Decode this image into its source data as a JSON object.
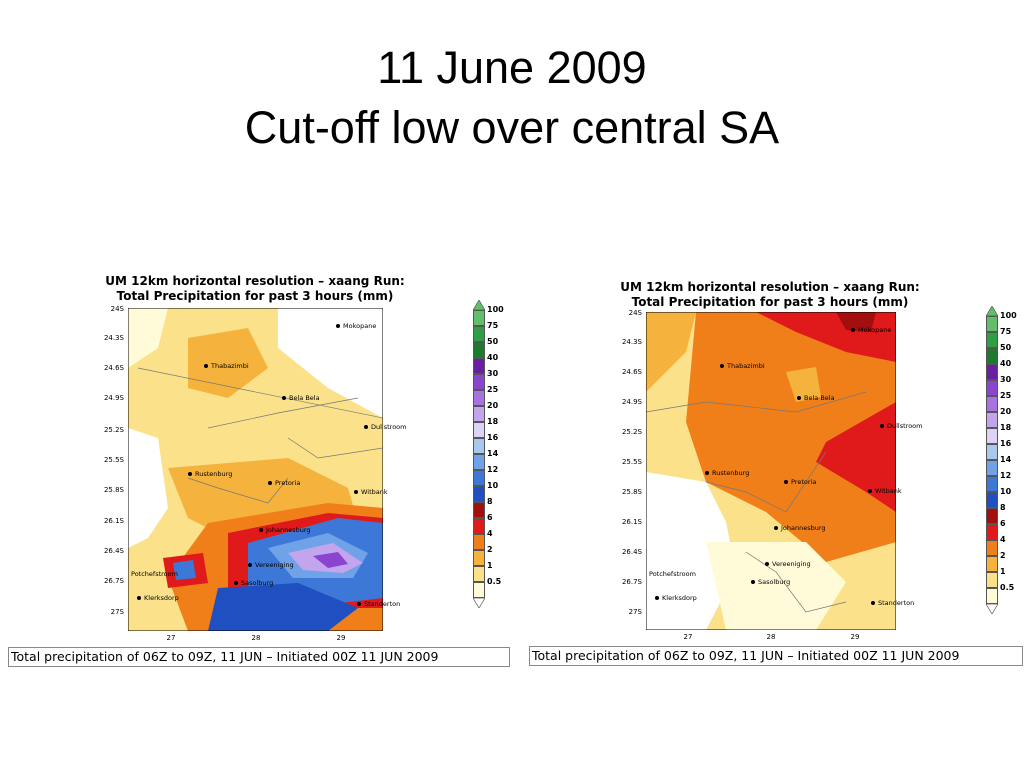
{
  "slide": {
    "title_line1": "11 June 2009",
    "title_line2": "Cut-off low over central SA"
  },
  "panels": [
    {
      "header_line1": "UM 12km horizontal resolution – xaang Run:",
      "header_line2": "Total Precipitation for past 3 hours (mm)",
      "caption": "Total precipitation of 06Z to 09Z, 11 JUN – Initiated 00Z 11 JUN 2009"
    },
    {
      "header_line1": "UM 12km horizontal resolution – xaang Run:",
      "header_line2": "Total Precipitation for past 3 hours (mm)",
      "caption": "Total precipitation of 06Z to 09Z, 11 JUN – Initiated 00Z 11 JUN 2009"
    }
  ],
  "axes": {
    "lat_labels": [
      "24S",
      "24.3S",
      "24.6S",
      "24.9S",
      "25.2S",
      "25.5S",
      "25.8S",
      "26.1S",
      "26.4S",
      "26.7S",
      "27S"
    ],
    "lon_labels": [
      "27",
      "28",
      "29"
    ]
  },
  "towns": [
    "Mokopane",
    "Thabazimbi",
    "Bela Bela",
    "Dullstroom",
    "Rustenburg",
    "Pretoria",
    "Witbank",
    "Johannesburg",
    "Vereeniging",
    "Potchefstroom",
    "Sasolburg",
    "Klerksdorp",
    "Standerton"
  ],
  "legend": {
    "levels": [
      "100",
      "75",
      "50",
      "40",
      "30",
      "25",
      "20",
      "18",
      "16",
      "14",
      "12",
      "10",
      "8",
      "6",
      "4",
      "2",
      "1",
      "0.5"
    ],
    "colors": [
      "#5fbf6a",
      "#2ea043",
      "#1d7a2e",
      "#6a1fa0",
      "#8b44d0",
      "#a673e0",
      "#c3a5ee",
      "#dcd3f6",
      "#a8c8f0",
      "#6fa2e8",
      "#3d78d8",
      "#1f4fc0",
      "#a30f0f",
      "#e01a1a",
      "#f07f1a",
      "#f5b23c",
      "#fbe18a",
      "#fffbd8"
    ]
  }
}
